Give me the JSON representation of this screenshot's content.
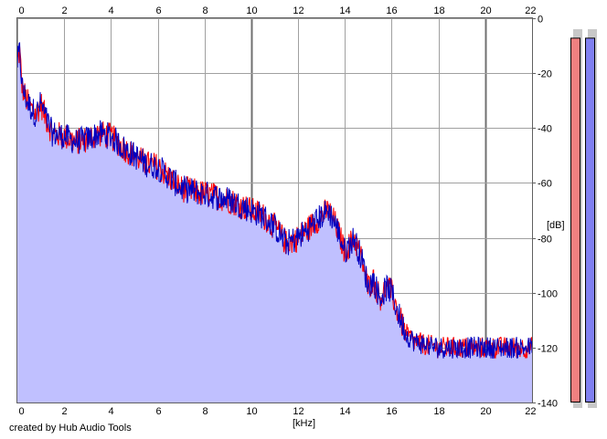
{
  "credit": "created by Hub Audio Tools",
  "colors": {
    "fill": "#c0c0ff",
    "left_channel": "#ff0000",
    "right_channel": "#0000c0",
    "grid": "#a0a0a0",
    "grid_major": "#707070",
    "meter_left": "#f08080",
    "meter_right": "#8080f0"
  },
  "chart_data": {
    "type": "line",
    "xlabel": "[kHz]",
    "ylabel": "[dB]",
    "xlim": [
      0,
      22
    ],
    "ylim": [
      -140,
      0
    ],
    "x_ticks": [
      "0",
      "2",
      "4",
      "6",
      "8",
      "10",
      "12",
      "14",
      "16",
      "18",
      "20",
      "22"
    ],
    "y_ticks": [
      "0",
      "-20",
      "-40",
      "-60",
      "-80",
      "-100",
      "-120",
      "-140"
    ],
    "grid": true,
    "series": [
      {
        "x": [
          0,
          0.1,
          0.2,
          0.4,
          0.6,
          0.8,
          1.0,
          1.2,
          1.5,
          2.0,
          2.5,
          3.0,
          3.5,
          4.0,
          4.5,
          5.0,
          5.5,
          6.0,
          6.5,
          7.0,
          7.5,
          8.0,
          8.5,
          9.0,
          9.5,
          10.0,
          10.5,
          11.0,
          11.5,
          12.0,
          12.5,
          13.0,
          13.3,
          13.6,
          14.0,
          14.4,
          14.8,
          15.0,
          15.2,
          15.5,
          15.8,
          16.0,
          16.3,
          16.6,
          17.0,
          17.5,
          18.0,
          19.0,
          20.0,
          21.0,
          22.0
        ],
        "values": [
          -16,
          -12,
          -25,
          -30,
          -33,
          -35,
          -31,
          -36,
          -42,
          -43,
          -45,
          -44,
          -42,
          -43,
          -47,
          -50,
          -53,
          -54,
          -58,
          -62,
          -63,
          -64,
          -65,
          -66,
          -68,
          -70,
          -72,
          -76,
          -82,
          -80,
          -76,
          -72,
          -70,
          -75,
          -85,
          -80,
          -90,
          -98,
          -95,
          -102,
          -98,
          -100,
          -108,
          -115,
          -118,
          -119,
          -120,
          -120,
          -120,
          -120,
          -120
        ]
      }
    ],
    "meters": [
      0.97,
      0.97
    ]
  }
}
